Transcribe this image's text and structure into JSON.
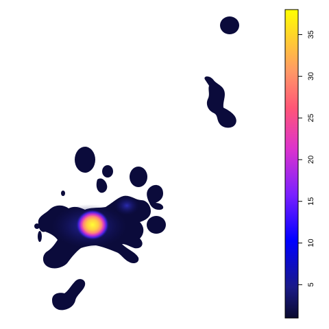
{
  "chart_data": {
    "type": "heatmap",
    "title": "",
    "xlabel": "",
    "ylabel": "",
    "colorbar": {
      "range": [
        1,
        38
      ],
      "ticks": [
        5,
        10,
        15,
        20,
        25,
        30,
        35
      ],
      "tick_labels": [
        "5",
        "10",
        "15",
        "20",
        "25",
        "30",
        "35"
      ],
      "palette": [
        "#0a0a2e",
        "#2a2a99",
        "#0000ff",
        "#7a20ff",
        "#dd33cc",
        "#ff5577",
        "#ff9966",
        "#ffcc33",
        "#ffff00"
      ],
      "placement": "right"
    },
    "peak_value": 38,
    "background_value_color": "#0a0a3a"
  }
}
